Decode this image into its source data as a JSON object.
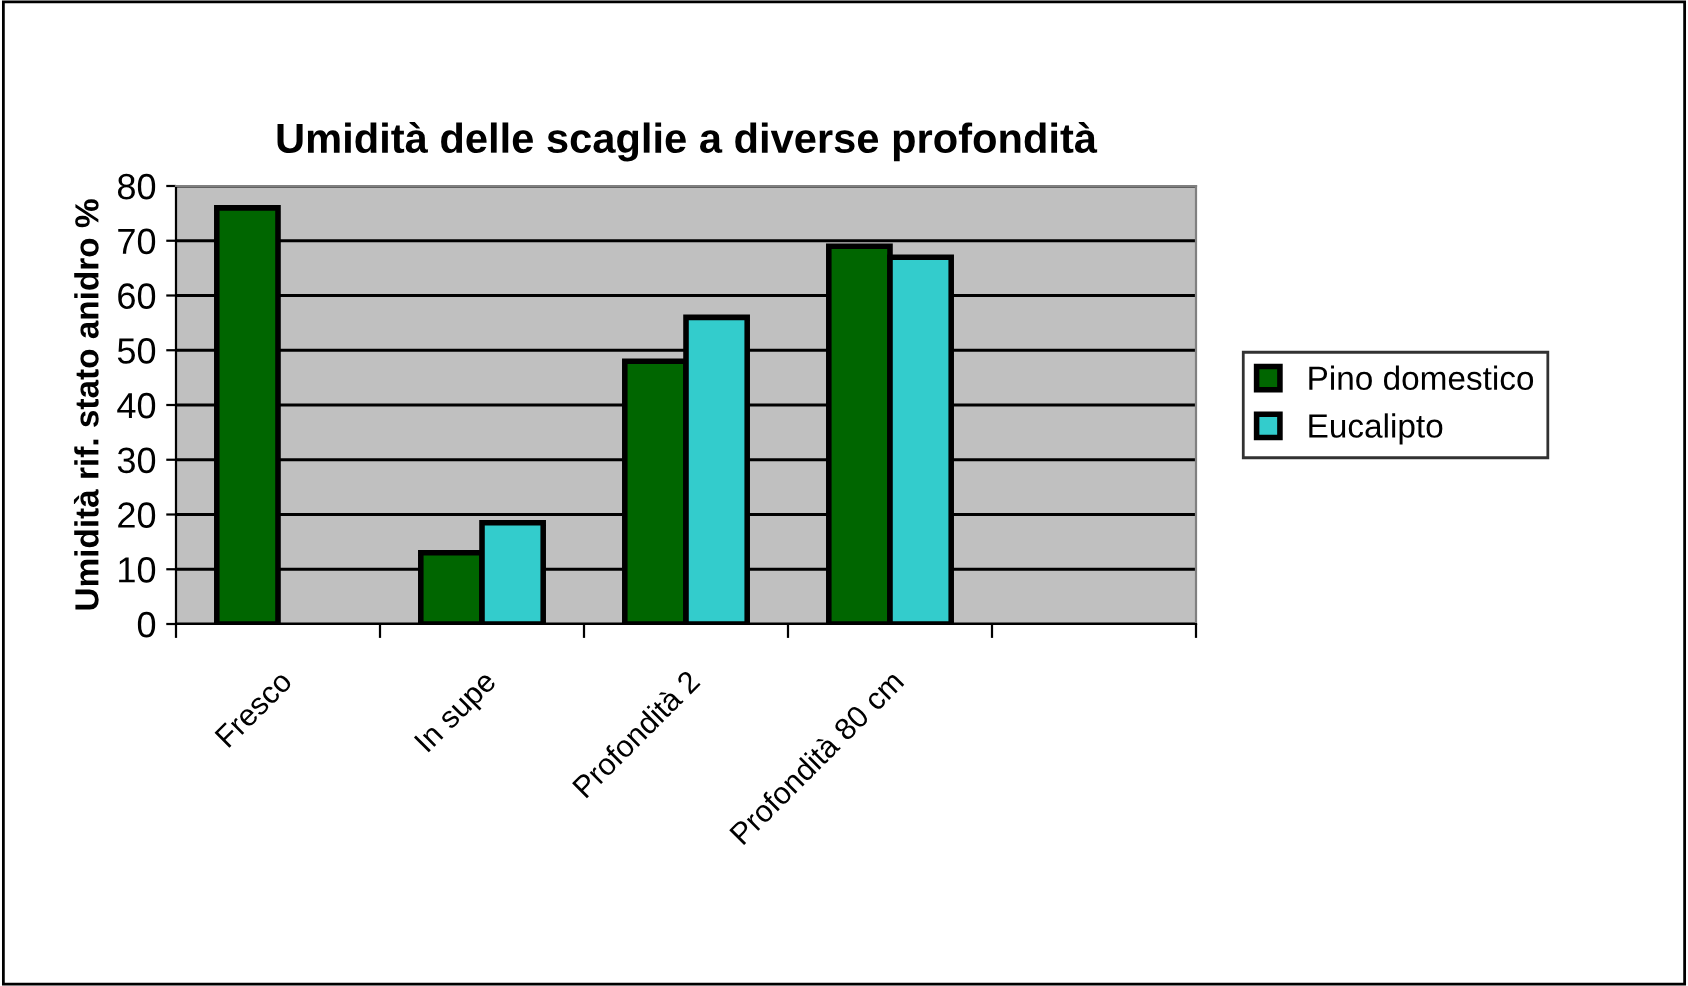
{
  "chart_data": {
    "type": "bar",
    "title": "Umidità delle scaglie a diverse profondità",
    "ylabel": "Umidità rif. stato anidro %",
    "categories": [
      "Fresco",
      "In supe",
      "Profondità 2",
      "Profondità 80 cm",
      null
    ],
    "series": [
      {
        "name": "Pino domestico",
        "color": "#006600",
        "values": [
          76,
          13,
          48,
          69,
          null
        ]
      },
      {
        "name": "Eucalipto",
        "color": "#33cccc",
        "values": [
          null,
          18.5,
          56,
          67,
          null
        ]
      }
    ],
    "ylim": [
      0,
      80
    ],
    "yticks": [
      0,
      10,
      20,
      30,
      40,
      50,
      60,
      70,
      80
    ],
    "grid": "y",
    "legend": "right"
  }
}
